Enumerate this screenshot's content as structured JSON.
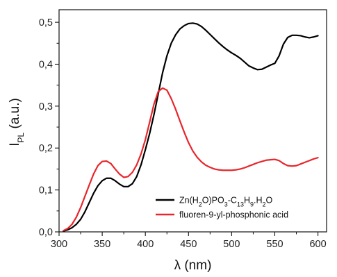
{
  "chart_data": {
    "type": "line",
    "xlabel": "λ (nm)",
    "ylabel": {
      "main": "I",
      "sub": "PL",
      "unit": " (a.u.)"
    },
    "xlim": [
      300,
      610
    ],
    "ylim": [
      0,
      0.53
    ],
    "xticks": [
      300,
      350,
      400,
      450,
      500,
      550,
      600
    ],
    "yticks": [
      0.0,
      0.1,
      0.2,
      0.3,
      0.4,
      0.5
    ],
    "ytick_labels": [
      "0,0",
      "0,1",
      "0,2",
      "0,3",
      "0,4",
      "0,5"
    ],
    "grid": false,
    "legend_position": "bottom-right",
    "series": [
      {
        "name": "Zn(H2O)PO3-C13H9.H2O",
        "name_parts": [
          {
            "t": "Zn(H",
            "s": ""
          },
          {
            "t": "2",
            "s": "sub"
          },
          {
            "t": "O)PO",
            "s": ""
          },
          {
            "t": "3",
            "s": "sub"
          },
          {
            "t": "-C",
            "s": ""
          },
          {
            "t": "13",
            "s": "sub"
          },
          {
            "t": "H",
            "s": ""
          },
          {
            "t": "9",
            "s": "sub"
          },
          {
            "t": ".H",
            "s": ""
          },
          {
            "t": "2",
            "s": "sub"
          },
          {
            "t": "O",
            "s": ""
          }
        ],
        "color": "#000000",
        "x": [
          305,
          310,
          315,
          320,
          325,
          330,
          335,
          340,
          345,
          350,
          355,
          360,
          365,
          370,
          375,
          380,
          385,
          390,
          395,
          400,
          405,
          410,
          415,
          420,
          425,
          430,
          435,
          440,
          445,
          450,
          455,
          460,
          465,
          470,
          475,
          480,
          485,
          490,
          495,
          500,
          505,
          510,
          515,
          520,
          525,
          530,
          535,
          540,
          545,
          550,
          555,
          560,
          565,
          570,
          575,
          580,
          585,
          590,
          595,
          600
        ],
        "y": [
          0.002,
          0.005,
          0.01,
          0.018,
          0.03,
          0.048,
          0.07,
          0.092,
          0.11,
          0.122,
          0.128,
          0.128,
          0.122,
          0.114,
          0.108,
          0.108,
          0.115,
          0.132,
          0.16,
          0.196,
          0.235,
          0.28,
          0.33,
          0.38,
          0.42,
          0.45,
          0.47,
          0.484,
          0.492,
          0.497,
          0.498,
          0.496,
          0.49,
          0.481,
          0.471,
          0.461,
          0.451,
          0.442,
          0.434,
          0.427,
          0.421,
          0.414,
          0.405,
          0.396,
          0.391,
          0.387,
          0.388,
          0.393,
          0.398,
          0.402,
          0.42,
          0.448,
          0.464,
          0.469,
          0.469,
          0.468,
          0.465,
          0.463,
          0.465,
          0.468
        ]
      },
      {
        "name": "fluoren-9-yl-phosphonic acid",
        "name_parts": [
          {
            "t": "fluoren-9-yl-phosphonic acid",
            "s": ""
          }
        ],
        "color": "#e8262b",
        "x": [
          305,
          310,
          315,
          320,
          325,
          330,
          335,
          340,
          345,
          350,
          355,
          360,
          365,
          370,
          375,
          380,
          385,
          390,
          395,
          400,
          405,
          410,
          415,
          420,
          425,
          430,
          435,
          440,
          445,
          450,
          455,
          460,
          465,
          470,
          475,
          480,
          485,
          490,
          495,
          500,
          505,
          510,
          515,
          520,
          525,
          530,
          535,
          540,
          545,
          550,
          555,
          560,
          565,
          570,
          575,
          580,
          585,
          590,
          595,
          600
        ],
        "y": [
          0.003,
          0.008,
          0.018,
          0.035,
          0.058,
          0.085,
          0.112,
          0.138,
          0.158,
          0.168,
          0.169,
          0.163,
          0.15,
          0.138,
          0.13,
          0.132,
          0.142,
          0.16,
          0.186,
          0.22,
          0.262,
          0.305,
          0.335,
          0.343,
          0.338,
          0.318,
          0.293,
          0.265,
          0.238,
          0.213,
          0.193,
          0.178,
          0.167,
          0.159,
          0.154,
          0.15,
          0.148,
          0.147,
          0.147,
          0.147,
          0.148,
          0.15,
          0.153,
          0.157,
          0.161,
          0.165,
          0.168,
          0.171,
          0.172,
          0.173,
          0.17,
          0.163,
          0.158,
          0.157,
          0.158,
          0.162,
          0.166,
          0.17,
          0.174,
          0.177
        ]
      }
    ]
  }
}
